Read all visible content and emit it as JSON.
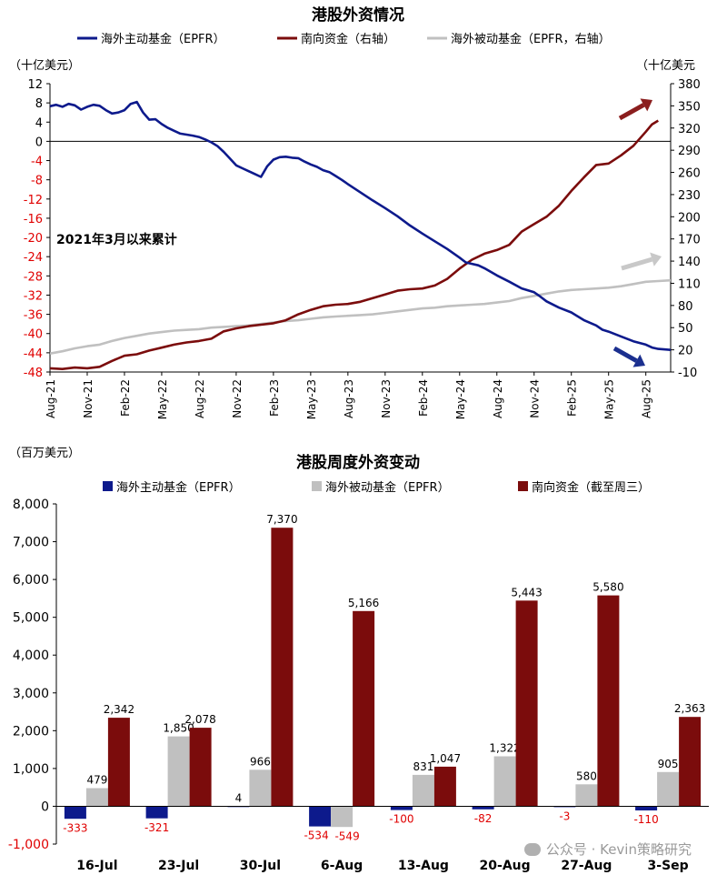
{
  "chart_data": [
    {
      "type": "line",
      "title": "港股外资情况",
      "left_unit": "（十亿美元）",
      "right_unit": "（十亿美元",
      "annotation": "2021年3月以来累计",
      "legend_position": "top",
      "grid": false,
      "ylim_left": [
        -48,
        12
      ],
      "left_ticks": [
        12,
        8,
        4,
        0,
        -4,
        -8,
        -12,
        -16,
        -20,
        -24,
        -28,
        -32,
        -36,
        -40,
        -44,
        -48
      ],
      "ylim_right": [
        -10,
        380
      ],
      "right_ticks": [
        380,
        350,
        320,
        290,
        260,
        230,
        200,
        170,
        140,
        110,
        80,
        50,
        20,
        -10
      ],
      "x_ticks": [
        "Aug-21",
        "Nov-21",
        "Feb-22",
        "May-22",
        "Aug-22",
        "Nov-22",
        "Feb-23",
        "May-23",
        "Aug-23",
        "Nov-23",
        "Feb-24",
        "May-24",
        "Aug-24",
        "Nov-24",
        "Feb-25",
        "May-25",
        "Aug-25"
      ],
      "x_months": [
        0,
        3,
        6,
        9,
        12,
        15,
        18,
        21,
        24,
        27,
        30,
        33,
        36,
        39,
        42,
        45,
        48
      ],
      "xlim_months": [
        0,
        50
      ],
      "series": [
        {
          "name": "海外主动基金（EPFR）",
          "axis": "left",
          "color": "#0d1a8c",
          "points": [
            [
              0,
              7.3
            ],
            [
              0.5,
              7.6
            ],
            [
              1,
              7.2
            ],
            [
              1.5,
              7.8
            ],
            [
              2,
              7.5
            ],
            [
              2.5,
              6.6
            ],
            [
              3,
              7.2
            ],
            [
              3.5,
              7.6
            ],
            [
              4,
              7.4
            ],
            [
              4.5,
              6.5
            ],
            [
              5,
              5.8
            ],
            [
              5.5,
              6.0
            ],
            [
              6,
              6.5
            ],
            [
              6.5,
              7.8
            ],
            [
              7,
              8.2
            ],
            [
              7.5,
              6.0
            ],
            [
              8,
              4.5
            ],
            [
              8.5,
              4.6
            ],
            [
              9,
              3.6
            ],
            [
              9.5,
              2.8
            ],
            [
              10,
              2.2
            ],
            [
              10.5,
              1.6
            ],
            [
              11,
              1.4
            ],
            [
              11.5,
              1.2
            ],
            [
              12,
              0.9
            ],
            [
              12.5,
              0.4
            ],
            [
              13,
              -0.2
            ],
            [
              13.5,
              -1.0
            ],
            [
              14,
              -2.2
            ],
            [
              14.5,
              -3.6
            ],
            [
              15,
              -5.0
            ],
            [
              15.5,
              -5.6
            ],
            [
              16,
              -6.2
            ],
            [
              16.5,
              -6.8
            ],
            [
              17,
              -7.4
            ],
            [
              17.5,
              -5.2
            ],
            [
              18,
              -3.8
            ],
            [
              18.5,
              -3.3
            ],
            [
              19,
              -3.2
            ],
            [
              19.5,
              -3.4
            ],
            [
              20,
              -3.5
            ],
            [
              20.5,
              -4.2
            ],
            [
              21,
              -4.8
            ],
            [
              21.5,
              -5.3
            ],
            [
              22,
              -6.0
            ],
            [
              22.5,
              -6.4
            ],
            [
              23,
              -7.2
            ],
            [
              23.5,
              -8.0
            ],
            [
              24,
              -8.9
            ],
            [
              25,
              -10.6
            ],
            [
              26,
              -12.3
            ],
            [
              27,
              -13.9
            ],
            [
              28,
              -15.6
            ],
            [
              29,
              -17.5
            ],
            [
              30,
              -19.2
            ],
            [
              31,
              -20.8
            ],
            [
              32,
              -22.4
            ],
            [
              33,
              -24.2
            ],
            [
              33.5,
              -25.2
            ],
            [
              34,
              -25.5
            ],
            [
              34.5,
              -25.8
            ],
            [
              35,
              -26.4
            ],
            [
              36,
              -27.9
            ],
            [
              37,
              -29.2
            ],
            [
              38,
              -30.6
            ],
            [
              39,
              -31.4
            ],
            [
              39.5,
              -32.3
            ],
            [
              40,
              -33.3
            ],
            [
              41,
              -34.6
            ],
            [
              42,
              -35.6
            ],
            [
              43,
              -37.2
            ],
            [
              44,
              -38.3
            ],
            [
              44.5,
              -39.2
            ],
            [
              45,
              -39.6
            ],
            [
              46,
              -40.6
            ],
            [
              47,
              -41.6
            ],
            [
              48,
              -42.3
            ],
            [
              48.5,
              -42.9
            ],
            [
              49,
              -43.2
            ],
            [
              50,
              -43.4
            ]
          ]
        },
        {
          "name": "南向资金（右轴）",
          "axis": "right",
          "color": "#7b0c0c",
          "points": [
            [
              0,
              -5
            ],
            [
              1,
              -6
            ],
            [
              2,
              -4
            ],
            [
              3,
              -5
            ],
            [
              4,
              -3
            ],
            [
              5,
              5
            ],
            [
              6,
              12
            ],
            [
              7,
              14
            ],
            [
              8,
              19
            ],
            [
              9,
              23
            ],
            [
              10,
              27
            ],
            [
              11,
              30
            ],
            [
              12,
              32
            ],
            [
              13,
              35
            ],
            [
              14,
              45
            ],
            [
              15,
              49
            ],
            [
              16,
              52
            ],
            [
              17,
              54
            ],
            [
              18,
              56
            ],
            [
              19,
              60
            ],
            [
              20,
              68
            ],
            [
              21,
              74
            ],
            [
              22,
              79
            ],
            [
              23,
              81
            ],
            [
              24,
              82
            ],
            [
              25,
              85
            ],
            [
              26,
              90
            ],
            [
              27,
              95
            ],
            [
              28,
              100
            ],
            [
              29,
              102
            ],
            [
              30,
              103
            ],
            [
              31,
              107
            ],
            [
              32,
              116
            ],
            [
              33,
              130
            ],
            [
              34,
              142
            ],
            [
              35,
              150
            ],
            [
              36,
              155
            ],
            [
              37,
              162
            ],
            [
              38,
              180
            ],
            [
              39,
              190
            ],
            [
              40,
              200
            ],
            [
              41,
              215
            ],
            [
              42,
              235
            ],
            [
              43,
              253
            ],
            [
              44,
              270
            ],
            [
              45,
              272
            ],
            [
              46,
              283
            ],
            [
              47,
              296
            ],
            [
              48,
              315
            ],
            [
              48.5,
              325
            ],
            [
              49,
              330
            ]
          ]
        },
        {
          "name": "海外被动基金（EPFR，右轴）",
          "axis": "right",
          "color": "#c0c0c0",
          "points": [
            [
              0,
              15
            ],
            [
              1,
              18
            ],
            [
              2,
              22
            ],
            [
              3,
              25
            ],
            [
              4,
              27
            ],
            [
              5,
              32
            ],
            [
              6,
              36
            ],
            [
              7,
              39
            ],
            [
              8,
              42
            ],
            [
              9,
              44
            ],
            [
              10,
              46
            ],
            [
              11,
              47
            ],
            [
              12,
              48
            ],
            [
              13,
              50
            ],
            [
              14,
              51
            ],
            [
              15,
              52
            ],
            [
              16,
              53
            ],
            [
              17,
              55
            ],
            [
              18,
              57
            ],
            [
              19,
              59
            ],
            [
              20,
              60
            ],
            [
              21,
              62
            ],
            [
              22,
              64
            ],
            [
              23,
              65
            ],
            [
              24,
              66
            ],
            [
              25,
              67
            ],
            [
              26,
              68
            ],
            [
              27,
              70
            ],
            [
              28,
              72
            ],
            [
              29,
              74
            ],
            [
              30,
              76
            ],
            [
              31,
              77
            ],
            [
              32,
              79
            ],
            [
              33,
              80
            ],
            [
              34,
              81
            ],
            [
              35,
              82
            ],
            [
              36,
              84
            ],
            [
              37,
              86
            ],
            [
              38,
              90
            ],
            [
              39,
              93
            ],
            [
              40,
              96
            ],
            [
              41,
              99
            ],
            [
              42,
              101
            ],
            [
              43,
              102
            ],
            [
              44,
              103
            ],
            [
              45,
              104
            ],
            [
              46,
              106
            ],
            [
              47,
              109
            ],
            [
              48,
              112
            ],
            [
              49,
              113
            ],
            [
              50,
              114
            ]
          ]
        }
      ]
    },
    {
      "type": "bar",
      "title": "港股周度外资变动",
      "unit": "（百万美元）",
      "legend_position": "top",
      "grid": false,
      "ylim": [
        -1000,
        8000
      ],
      "y_ticks": [
        "8,000",
        "7,000",
        "6,000",
        "5,000",
        "4,000",
        "3,000",
        "2,000",
        "1,000",
        "0",
        "-1,000"
      ],
      "y_tick_values": [
        8000,
        7000,
        6000,
        5000,
        4000,
        3000,
        2000,
        1000,
        0,
        -1000
      ],
      "categories": [
        "16-Jul",
        "23-Jul",
        "30-Jul",
        "6-Aug",
        "13-Aug",
        "20-Aug",
        "27-Aug",
        "3-Sep"
      ],
      "series": [
        {
          "name": "海外主动基金（EPFR）",
          "color": "#0d1a8c",
          "values": [
            -333,
            -321,
            4,
            -534,
            -100,
            -82,
            -3,
            -110
          ],
          "labels": [
            "-333",
            "-321",
            "4",
            "-534",
            "-100",
            "-82",
            "-3",
            "-110"
          ]
        },
        {
          "name": "海外被动基金（EPFR）",
          "color": "#c0c0c0",
          "values": [
            479,
            1850,
            966,
            -549,
            831,
            1322,
            580,
            905
          ],
          "labels": [
            "479",
            "1,850",
            "966",
            "-549",
            "831",
            "1,322",
            "580",
            "905"
          ]
        },
        {
          "name": "南向资金（截至周三）",
          "color": "#7b0c0c",
          "values": [
            2342,
            2078,
            7370,
            5166,
            1047,
            5443,
            5580,
            2363
          ],
          "labels": [
            "2,342",
            "2,078",
            "7,370",
            "5,166",
            "1,047",
            "5,443",
            "5,580",
            "2,363"
          ]
        }
      ]
    }
  ],
  "watermark": "公众号 · Kevin策略研究",
  "colors": {
    "negative_label": "#e00000",
    "axis": "#000000",
    "right_axis": "#000000"
  }
}
